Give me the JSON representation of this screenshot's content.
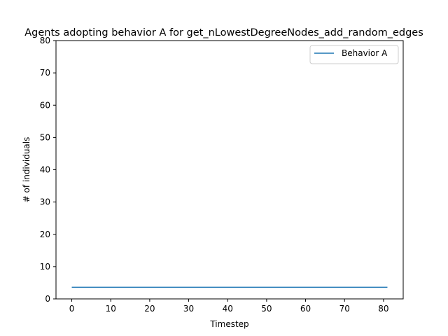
{
  "chart_data": {
    "type": "line",
    "title": "Agents adopting behavior A for get_nLowestDegreeNodes_add_random_edges",
    "xlabel": "Timestep",
    "ylabel": "# of individuals",
    "xlim": [
      -4.05,
      85.05
    ],
    "ylim": [
      0,
      80
    ],
    "xticks": [
      0,
      10,
      20,
      30,
      40,
      50,
      60,
      70,
      80
    ],
    "yticks": [
      0,
      10,
      20,
      30,
      40,
      50,
      60,
      70,
      80
    ],
    "legend_position": "top-right",
    "grid": false,
    "series": [
      {
        "name": "Behavior A",
        "color": "#1f77b4",
        "x": [
          0,
          81
        ],
        "y": [
          3.6,
          3.6
        ]
      }
    ]
  }
}
